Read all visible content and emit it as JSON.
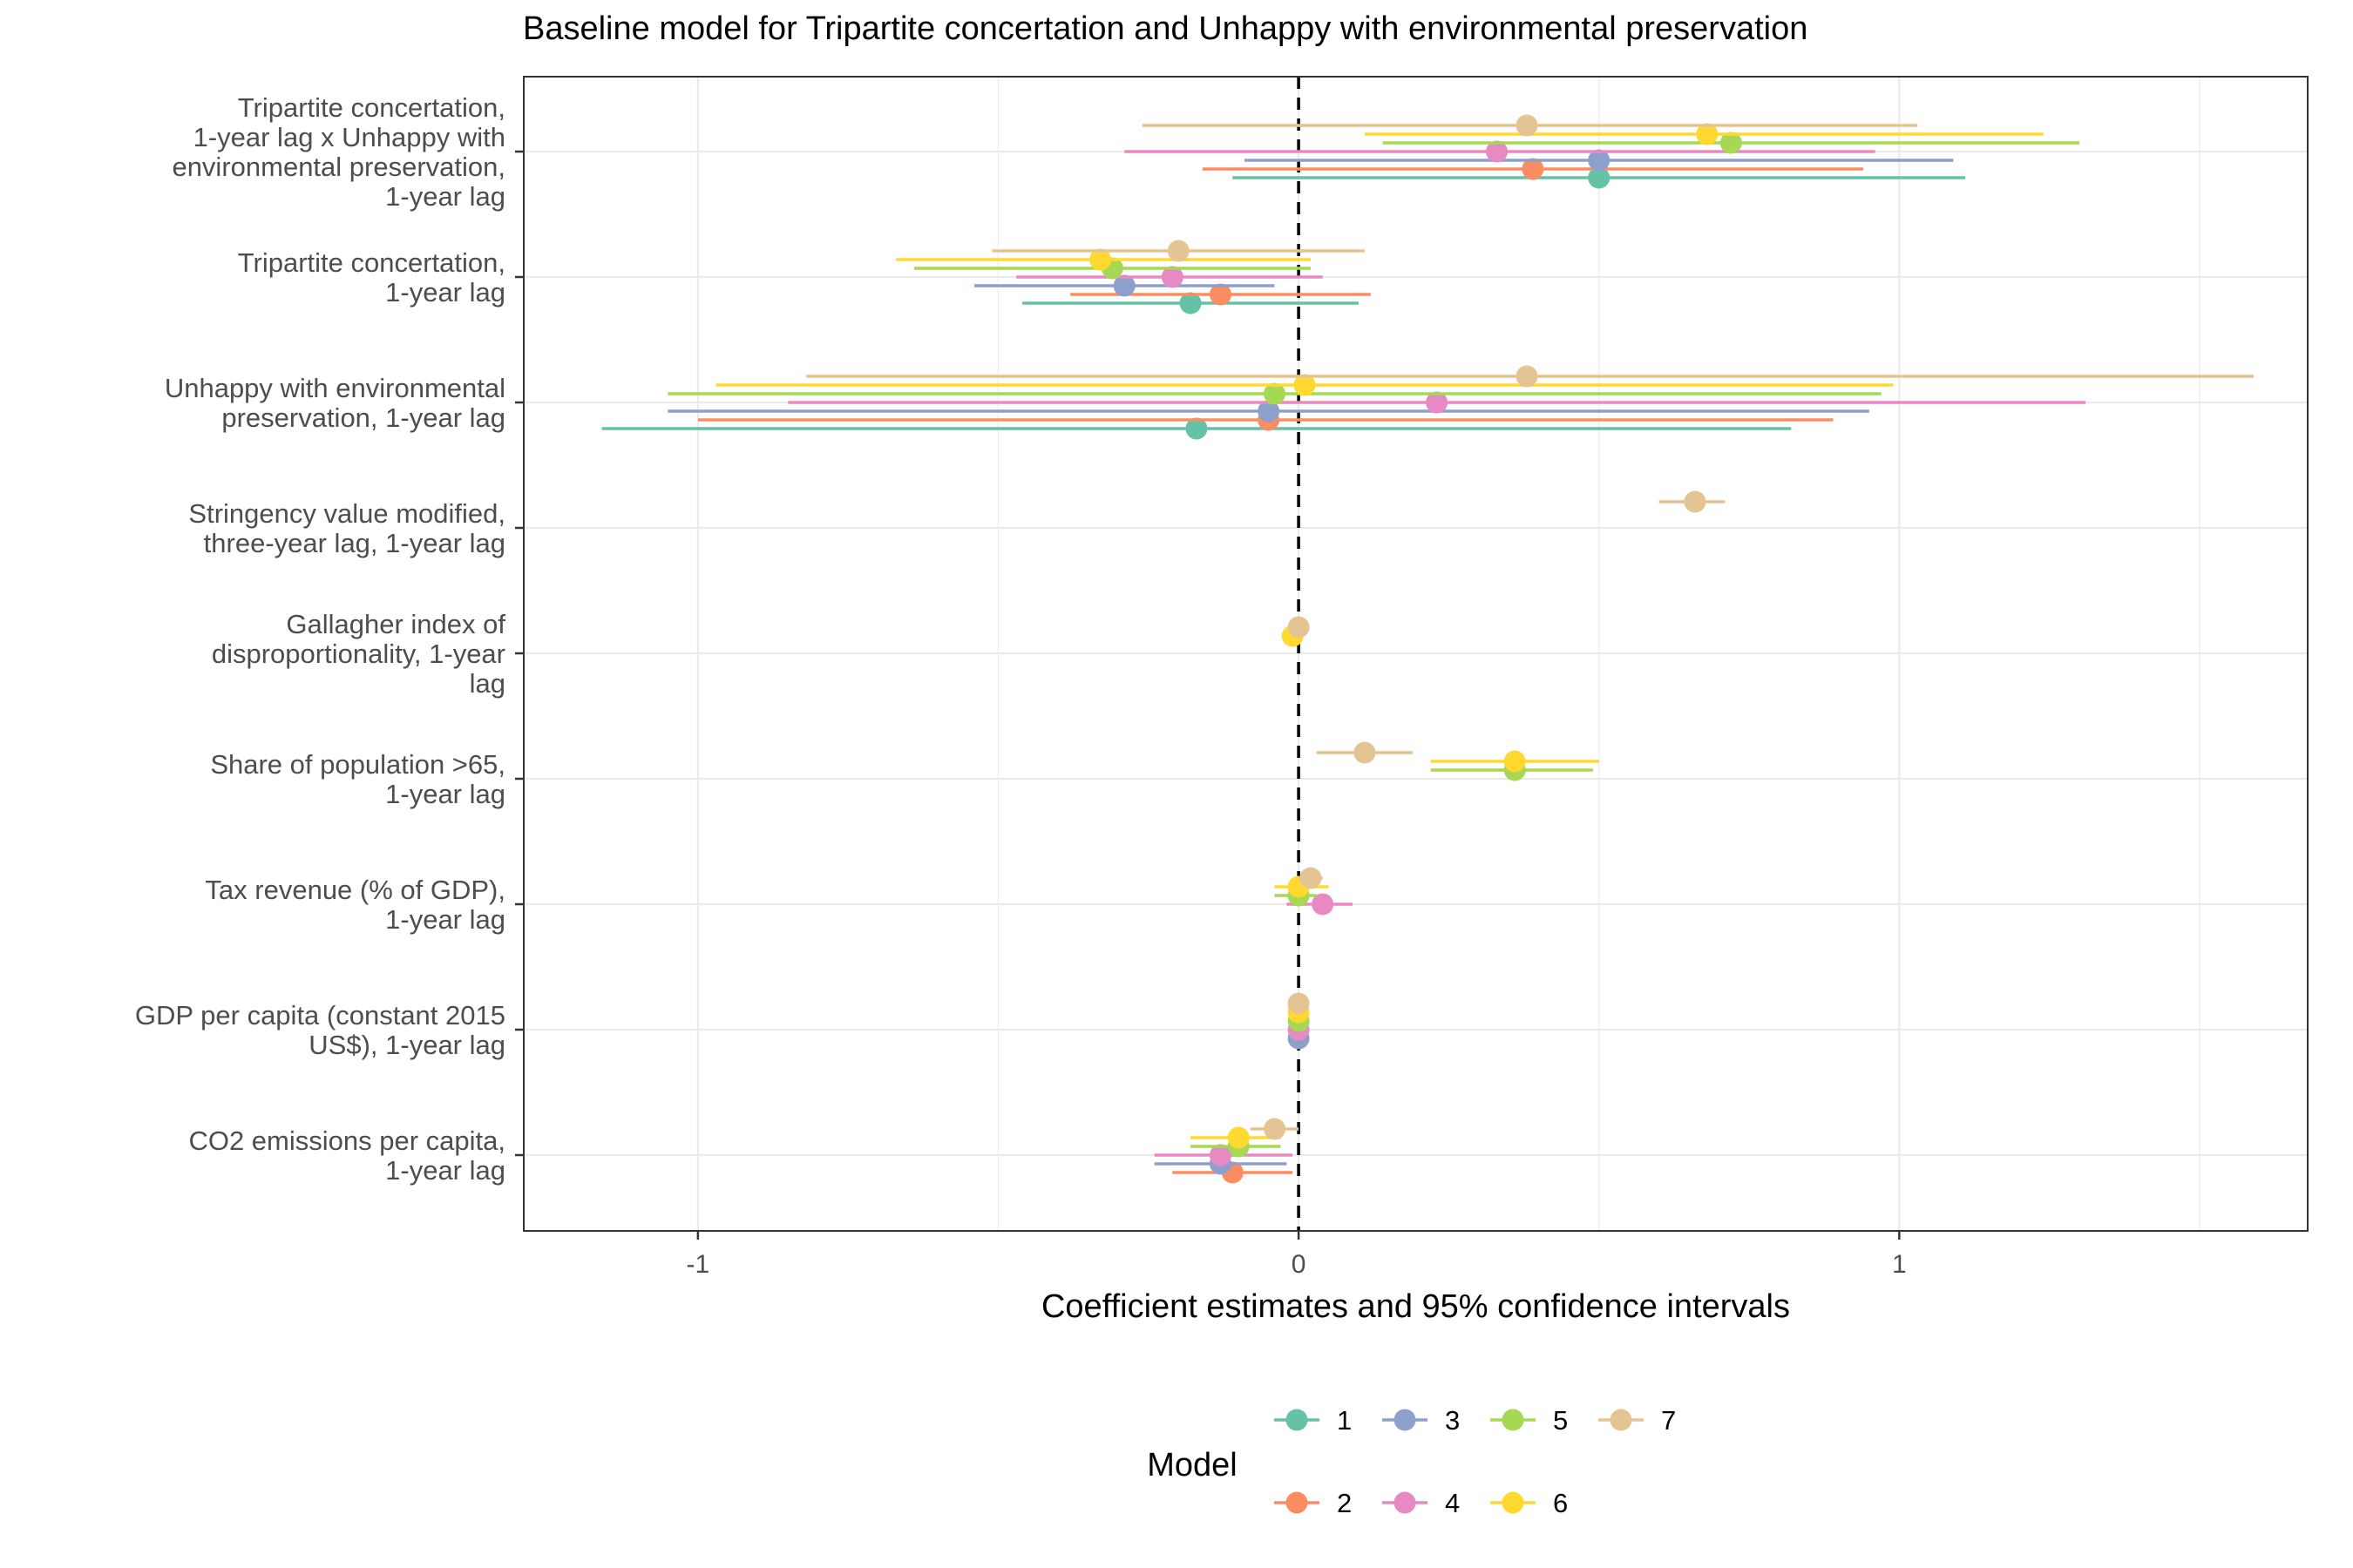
{
  "chart_data": {
    "type": "scatter",
    "subtype": "coefficient-plot",
    "title": "Baseline model for Tripartite concertation and Unhappy with environmental preservation",
    "xlabel": "Coefficient estimates and 95% confidence intervals",
    "ylabel": "",
    "xlim": [
      -1.29,
      1.68
    ],
    "x_ticks": [
      -1,
      0,
      1
    ],
    "x_tick_labels": [
      "-1",
      "0",
      "1"
    ],
    "reference_line": 0,
    "grid": true,
    "legend": {
      "title": "Model",
      "position": "bottom",
      "entries": [
        {
          "name": "1",
          "color": "#66C2A5"
        },
        {
          "name": "3",
          "color": "#8DA0CB"
        },
        {
          "name": "5",
          "color": "#A6D854"
        },
        {
          "name": "7",
          "color": "#E5C494"
        },
        {
          "name": "2",
          "color": "#FC8D62"
        },
        {
          "name": "4",
          "color": "#E78AC3"
        },
        {
          "name": "6",
          "color": "#FFD92F"
        }
      ]
    },
    "categories": [
      {
        "label": [
          "Tripartite concertation,",
          "1-year lag x Unhappy with",
          "environmental preservation,",
          "1-year lag"
        ]
      },
      {
        "label": [
          "Tripartite concertation,",
          "1-year lag"
        ]
      },
      {
        "label": [
          "Unhappy with environmental",
          "preservation, 1-year lag"
        ]
      },
      {
        "label": [
          "Stringency value modified,",
          "three-year lag, 1-year lag"
        ]
      },
      {
        "label": [
          "Gallagher index of",
          "disproportionality, 1-year",
          "lag"
        ]
      },
      {
        "label": [
          "Share of population >65,",
          "1-year lag"
        ]
      },
      {
        "label": [
          "Tax revenue (% of GDP),",
          "1-year lag"
        ]
      },
      {
        "label": [
          "GDP per capita (constant 2015",
          "US$), 1-year lag"
        ]
      },
      {
        "label": [
          "CO2 emissions per capita,",
          "1-year lag"
        ]
      }
    ],
    "series": [
      {
        "name": "1",
        "color": "#66C2A5",
        "estimates": [
          {
            "cat": 0,
            "est": 0.5,
            "lo": -0.11,
            "hi": 1.11
          },
          {
            "cat": 1,
            "est": -0.18,
            "lo": -0.46,
            "hi": 0.1
          },
          {
            "cat": 2,
            "est": -0.17,
            "lo": -1.16,
            "hi": 0.82
          }
        ]
      },
      {
        "name": "2",
        "color": "#FC8D62",
        "estimates": [
          {
            "cat": 0,
            "est": 0.39,
            "lo": -0.16,
            "hi": 0.94
          },
          {
            "cat": 1,
            "est": -0.13,
            "lo": -0.38,
            "hi": 0.12
          },
          {
            "cat": 2,
            "est": -0.05,
            "lo": -1.0,
            "hi": 0.89
          },
          {
            "cat": 8,
            "est": -0.11,
            "lo": -0.21,
            "hi": -0.01
          }
        ]
      },
      {
        "name": "3",
        "color": "#8DA0CB",
        "estimates": [
          {
            "cat": 0,
            "est": 0.5,
            "lo": -0.09,
            "hi": 1.09
          },
          {
            "cat": 1,
            "est": -0.29,
            "lo": -0.54,
            "hi": -0.04
          },
          {
            "cat": 2,
            "est": -0.05,
            "lo": -1.05,
            "hi": 0.95
          },
          {
            "cat": 7,
            "est": 0.0,
            "lo": 0.0,
            "hi": 0.0
          },
          {
            "cat": 8,
            "est": -0.13,
            "lo": -0.24,
            "hi": -0.02
          }
        ]
      },
      {
        "name": "4",
        "color": "#E78AC3",
        "estimates": [
          {
            "cat": 0,
            "est": 0.33,
            "lo": -0.29,
            "hi": 0.96
          },
          {
            "cat": 1,
            "est": -0.21,
            "lo": -0.47,
            "hi": 0.04
          },
          {
            "cat": 2,
            "est": 0.23,
            "lo": -0.85,
            "hi": 1.31
          },
          {
            "cat": 6,
            "est": 0.04,
            "lo": -0.02,
            "hi": 0.09
          },
          {
            "cat": 7,
            "est": 0.0,
            "lo": 0.0,
            "hi": 0.0
          },
          {
            "cat": 8,
            "est": -0.13,
            "lo": -0.24,
            "hi": -0.01
          }
        ]
      },
      {
        "name": "5",
        "color": "#A6D854",
        "estimates": [
          {
            "cat": 0,
            "est": 0.72,
            "lo": 0.14,
            "hi": 1.3
          },
          {
            "cat": 1,
            "est": -0.31,
            "lo": -0.64,
            "hi": 0.02
          },
          {
            "cat": 2,
            "est": -0.04,
            "lo": -1.05,
            "hi": 0.97
          },
          {
            "cat": 5,
            "est": 0.36,
            "lo": 0.22,
            "hi": 0.49
          },
          {
            "cat": 6,
            "est": 0.0,
            "lo": -0.04,
            "hi": 0.03
          },
          {
            "cat": 7,
            "est": 0.0,
            "lo": 0.0,
            "hi": 0.0
          },
          {
            "cat": 8,
            "est": -0.1,
            "lo": -0.18,
            "hi": -0.03
          }
        ]
      },
      {
        "name": "6",
        "color": "#FFD92F",
        "estimates": [
          {
            "cat": 0,
            "est": 0.68,
            "lo": 0.11,
            "hi": 1.24
          },
          {
            "cat": 1,
            "est": -0.33,
            "lo": -0.67,
            "hi": 0.02
          },
          {
            "cat": 2,
            "est": 0.01,
            "lo": -0.97,
            "hi": 0.99
          },
          {
            "cat": 4,
            "est": -0.01,
            "lo": -0.02,
            "hi": 0.0
          },
          {
            "cat": 5,
            "est": 0.36,
            "lo": 0.22,
            "hi": 0.5
          },
          {
            "cat": 6,
            "est": 0.0,
            "lo": -0.04,
            "hi": 0.05
          },
          {
            "cat": 7,
            "est": 0.0,
            "lo": 0.0,
            "hi": 0.0
          },
          {
            "cat": 8,
            "est": -0.1,
            "lo": -0.18,
            "hi": -0.03
          }
        ]
      },
      {
        "name": "7",
        "color": "#E5C494",
        "estimates": [
          {
            "cat": 0,
            "est": 0.38,
            "lo": -0.26,
            "hi": 1.03
          },
          {
            "cat": 1,
            "est": -0.2,
            "lo": -0.51,
            "hi": 0.11
          },
          {
            "cat": 2,
            "est": 0.38,
            "lo": -0.82,
            "hi": 1.59
          },
          {
            "cat": 3,
            "est": 0.66,
            "lo": 0.6,
            "hi": 0.71
          },
          {
            "cat": 4,
            "est": 0.0,
            "lo": -0.01,
            "hi": 0.01
          },
          {
            "cat": 5,
            "est": 0.11,
            "lo": 0.03,
            "hi": 0.19
          },
          {
            "cat": 6,
            "est": 0.02,
            "lo": 0.0,
            "hi": 0.04
          },
          {
            "cat": 7,
            "est": 0.0,
            "lo": 0.0,
            "hi": 0.0
          },
          {
            "cat": 8,
            "est": -0.04,
            "lo": -0.08,
            "hi": 0.0
          }
        ]
      }
    ]
  }
}
